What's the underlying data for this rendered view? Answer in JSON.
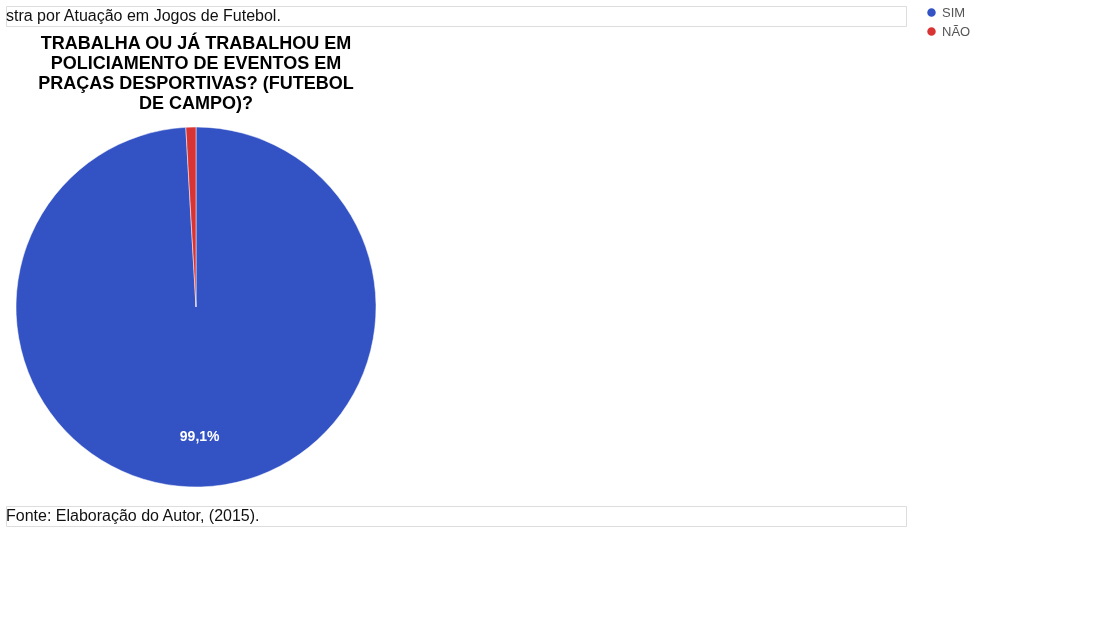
{
  "chart_data": {
    "type": "pie",
    "title": "TRABALHA OU JÁ TRABALHOU EM POLICIAMENTO DE EVENTOS EM PRAÇAS DESPORTIVAS? (FUTEBOL DE CAMPO)?",
    "categories": [
      "SIM",
      "NÃO"
    ],
    "values": [
      99.1,
      0.9
    ],
    "colors": [
      "#3352c4",
      "#d93434"
    ],
    "value_labels": [
      "99,1%",
      null
    ],
    "legend": "right",
    "annotations": [
      "stra por Atuação em Jogos de Futebol.",
      "Fonte: Elaboração do Autor, (2015)."
    ]
  }
}
